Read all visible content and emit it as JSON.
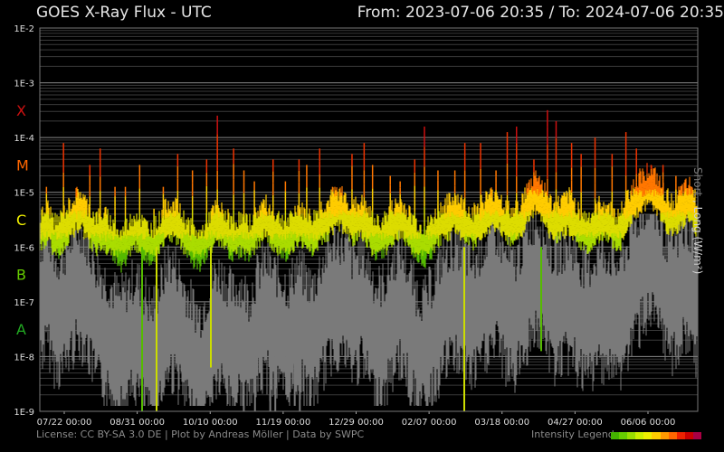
{
  "header": {
    "title": "GOES X-Ray Flux - UTC",
    "range_text": "From: 2023-07-06 20:35  /  To: 2024-07-06 20:35"
  },
  "footer": {
    "license": "License: CC BY-SA 3.0 DE | Plot by Andreas Möller | Data by SWPC",
    "legend_label": "Intensity Legend",
    "legend_colors": [
      "#44b300",
      "#66cc00",
      "#99dd00",
      "#ccee00",
      "#eeee00",
      "#ffcc00",
      "#ff9900",
      "#ff6600",
      "#ee2200",
      "#cc0000",
      "#aa0044"
    ]
  },
  "chart_data": {
    "type": "line",
    "title": "GOES X-Ray Flux - UTC",
    "ylabel_short": "Short",
    "ylabel_sep": " , ",
    "ylabel_long": "Long (W/m²)",
    "yscale": "log",
    "ylim": [
      1e-09,
      0.01
    ],
    "yticks": [
      "1E-9",
      "1E-8",
      "1E-7",
      "1E-6",
      "1E-5",
      "1E-4",
      "1E-3",
      "1E-2"
    ],
    "flare_classes": [
      {
        "label": "X",
        "color": "#cc1111"
      },
      {
        "label": "M",
        "color": "#ff6600"
      },
      {
        "label": "C",
        "color": "#eeee00"
      },
      {
        "label": "B",
        "color": "#66cc00"
      },
      {
        "label": "A",
        "color": "#22aa22"
      }
    ],
    "xticks": [
      "07/22 00:00",
      "08/31 00:00",
      "10/10 00:00",
      "11/19 00:00",
      "12/29 00:00",
      "02/07 00:00",
      "03/18 00:00",
      "04/27 00:00",
      "06/06 00:00"
    ],
    "grid": true,
    "series": [
      {
        "name": "Long",
        "color_scale": "flare-class",
        "log_values": [
          -5.8,
          -5.6,
          -5.9,
          -5.7,
          -5.5,
          -5.3,
          -5.6,
          -5.8,
          -5.7,
          -5.9,
          -6.1,
          -5.9,
          -5.7,
          -5.9,
          -6.0,
          -5.8,
          -5.5,
          -5.6,
          -5.8,
          -6.0,
          -6.1,
          -5.8,
          -5.6,
          -5.7,
          -5.9,
          -5.8,
          -5.9,
          -5.7,
          -5.5,
          -5.7,
          -5.8,
          -5.9,
          -5.6,
          -5.7,
          -5.8,
          -5.6,
          -5.5,
          -5.3,
          -5.4,
          -5.6,
          -5.5,
          -5.7,
          -5.9,
          -5.8,
          -5.6,
          -5.5,
          -5.7,
          -5.9,
          -6.0,
          -5.8,
          -5.6,
          -5.5,
          -5.4,
          -5.6,
          -5.7,
          -5.5,
          -5.4,
          -5.3,
          -5.6,
          -5.7,
          -5.5,
          -5.2,
          -5.0,
          -5.3,
          -5.6,
          -5.5,
          -5.4,
          -5.6,
          -5.8,
          -5.7,
          -5.5,
          -5.6,
          -5.8,
          -5.5,
          -5.2,
          -5.0,
          -4.9,
          -5.1,
          -5.4,
          -5.5,
          -5.3,
          -5.2,
          -5.5
        ]
      },
      {
        "name": "Short",
        "color": "#7a7a7a",
        "log_values": [
          -7.0,
          -6.8,
          -7.3,
          -7.2,
          -6.9,
          -6.7,
          -7.0,
          -7.4,
          -7.6,
          -7.8,
          -8.0,
          -7.8,
          -7.6,
          -7.9,
          -8.2,
          -7.8,
          -7.3,
          -7.4,
          -7.8,
          -8.1,
          -8.3,
          -7.9,
          -7.5,
          -7.6,
          -7.9,
          -7.7,
          -8.0,
          -7.6,
          -7.3,
          -7.5,
          -7.6,
          -7.8,
          -7.4,
          -7.6,
          -7.8,
          -7.4,
          -7.1,
          -6.9,
          -7.0,
          -7.3,
          -7.1,
          -7.4,
          -7.8,
          -7.7,
          -7.3,
          -7.1,
          -7.5,
          -7.9,
          -8.0,
          -7.7,
          -7.3,
          -7.1,
          -7.0,
          -7.2,
          -7.4,
          -7.1,
          -6.9,
          -6.8,
          -7.2,
          -7.4,
          -7.1,
          -6.7,
          -6.5,
          -6.8,
          -7.2,
          -7.1,
          -7.0,
          -7.2,
          -7.5,
          -7.3,
          -7.1,
          -7.2,
          -7.4,
          -7.1,
          -6.7,
          -6.4,
          -6.2,
          -6.5,
          -6.9,
          -7.0,
          -6.8,
          -6.7,
          -7.1
        ]
      }
    ],
    "flare_peaks_log": [
      -4.9,
      -4.1,
      -5.2,
      -4.5,
      -4.2,
      -4.9,
      -4.9,
      -4.5,
      -5.3,
      -4.9,
      -4.3,
      -4.6,
      -4.4,
      -3.6,
      -4.2,
      -4.6,
      -4.8,
      -4.4,
      -4.8,
      -4.4,
      -4.5,
      -4.2,
      -4.9,
      -4.3,
      -4.1,
      -4.5,
      -4.7,
      -4.8,
      -4.4,
      -3.8,
      -4.6,
      -4.6,
      -4.1,
      -4.1,
      -4.6,
      -3.9,
      -3.8,
      -4.4,
      -3.5,
      -3.7,
      -4.1,
      -4.3,
      -4.0,
      -4.3,
      -3.9,
      -4.2,
      -4.5,
      -4.5,
      -4.7,
      -4.9
    ],
    "dropouts_log": [
      -9.0,
      -9.0,
      -8.3,
      -9.0,
      -9.0,
      -8.7,
      -8.9,
      -9.0,
      -8.9,
      -7.8
    ]
  }
}
